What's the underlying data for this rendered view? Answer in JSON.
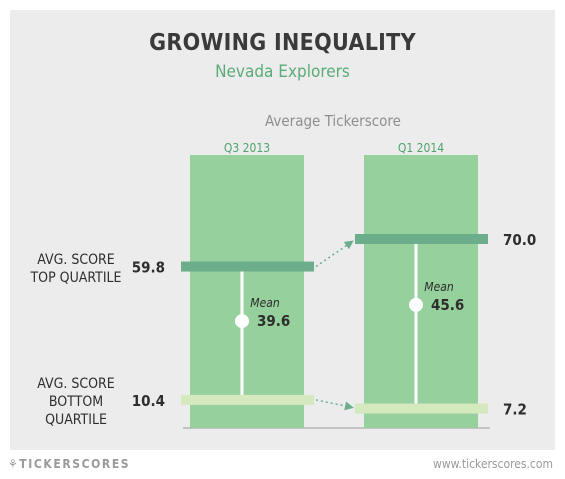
{
  "title": "GROWING INEQUALITY",
  "subtitle": "Nevada Explorers",
  "colors": {
    "background": "#ececec",
    "column": "#95d09d",
    "top_quartile": "#6cae8c",
    "bottom_quartile": "#d4e9bd",
    "title": "#3a3a3a",
    "subtitle": "#5aab78"
  },
  "chart_data": {
    "type": "bar",
    "title": "Average Tickerscore",
    "categories": [
      "Q3 2013",
      "Q1 2014"
    ],
    "series": [
      {
        "name": "AVG. SCORE TOP QUARTILE",
        "label_lines": [
          "AVG. SCORE",
          "TOP QUARTILE"
        ],
        "values": [
          59.8,
          70.0
        ]
      },
      {
        "name": "Mean",
        "values": [
          39.6,
          45.6
        ]
      },
      {
        "name": "AVG. SCORE BOTTOM QUARTILE",
        "label_lines": [
          "AVG. SCORE",
          "BOTTOM",
          "QUARTILE"
        ],
        "values": [
          10.4,
          7.2
        ]
      }
    ],
    "mean_label": "Mean",
    "value_labels": {
      "top": [
        "59.8",
        "70.0"
      ],
      "mean": [
        "39.6",
        "45.6"
      ],
      "bottom": [
        "10.4",
        "7.2"
      ]
    },
    "ylim": [
      0,
      100
    ],
    "grid": false
  },
  "footer": {
    "brand": "⚘TICKERSCORES",
    "url": "www.tickerscores.com"
  }
}
